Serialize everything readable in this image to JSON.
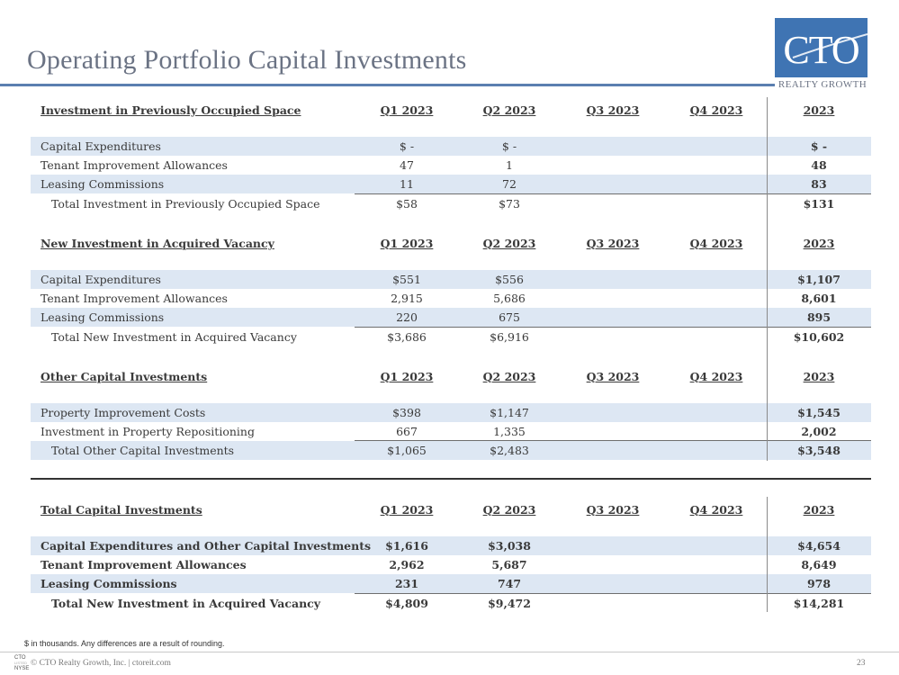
{
  "title": "Operating Portfolio Capital Investments",
  "logo": {
    "mark": "CTO",
    "tagline": "REALTY GROWTH"
  },
  "columns": [
    "Q1 2023",
    "Q2 2023",
    "Q3 2023",
    "Q4 2023",
    "2023"
  ],
  "sections": [
    {
      "heading": "Investment in Previously Occupied Space",
      "rows": [
        {
          "label": "Capital Expenditures",
          "q1": "$       -",
          "q2": "$       -",
          "q3": "",
          "q4": "",
          "fy": "$     -"
        },
        {
          "label": "Tenant Improvement Allowances",
          "q1": "47",
          "q2": "1",
          "q3": "",
          "q4": "",
          "fy": "48"
        },
        {
          "label": "Leasing Commissions",
          "q1": "11",
          "q2": "72",
          "q3": "",
          "q4": "",
          "fy": "83"
        }
      ],
      "total": {
        "label": "Total Investment in Previously Occupied Space",
        "q1": "$58",
        "q2": "$73",
        "q3": "",
        "q4": "",
        "fy": "$131"
      }
    },
    {
      "heading": "New Investment in Acquired Vacancy",
      "rows": [
        {
          "label": "Capital Expenditures",
          "q1": "$551",
          "q2": "$556",
          "q3": "",
          "q4": "",
          "fy": "$1,107"
        },
        {
          "label": "Tenant Improvement Allowances",
          "q1": "2,915",
          "q2": "5,686",
          "q3": "",
          "q4": "",
          "fy": "8,601"
        },
        {
          "label": "Leasing Commissions",
          "q1": "220",
          "q2": "675",
          "q3": "",
          "q4": "",
          "fy": "895"
        }
      ],
      "total": {
        "label": "Total New Investment in Acquired Vacancy",
        "q1": "$3,686",
        "q2": "$6,916",
        "q3": "",
        "q4": "",
        "fy": "$10,602"
      }
    },
    {
      "heading": "Other Capital Investments",
      "rows": [
        {
          "label": "Property Improvement Costs",
          "q1": "$398",
          "q2": "$1,147",
          "q3": "",
          "q4": "",
          "fy": "$1,545"
        },
        {
          "label": "Investment in Property Repositioning",
          "q1": "667",
          "q2": "1,335",
          "q3": "",
          "q4": "",
          "fy": "2,002"
        }
      ],
      "total": {
        "label": "Total Other Capital Investments",
        "q1": "$1,065",
        "q2": "$2,483",
        "q3": "",
        "q4": "",
        "fy": "$3,548"
      }
    },
    {
      "heading": "Total Capital Investments",
      "rows": [
        {
          "label": "Capital Expenditures and Other Capital Investments",
          "q1": "$1,616",
          "q2": "$3,038",
          "q3": "",
          "q4": "",
          "fy": "$4,654"
        },
        {
          "label": "Tenant Improvement Allowances",
          "q1": "2,962",
          "q2": "5,687",
          "q3": "",
          "q4": "",
          "fy": "8,649"
        },
        {
          "label": "Leasing Commissions",
          "q1": "231",
          "q2": "747",
          "q3": "",
          "q4": "",
          "fy": "978"
        }
      ],
      "total": {
        "label": "Total New Investment in Acquired Vacancy",
        "q1": "$4,809",
        "q2": "$9,472",
        "q3": "",
        "q4": "",
        "fy": "$14,281"
      }
    }
  ],
  "footnote": "$ in thousands. Any differences are a result of rounding.",
  "footer": {
    "exchange_top": "CTO",
    "exchange_mid": "LISTED",
    "exchange_bottom": "NYSE",
    "copyright": "© CTO Realty Growth, Inc. | ctoreit.com",
    "page_number": "23"
  }
}
